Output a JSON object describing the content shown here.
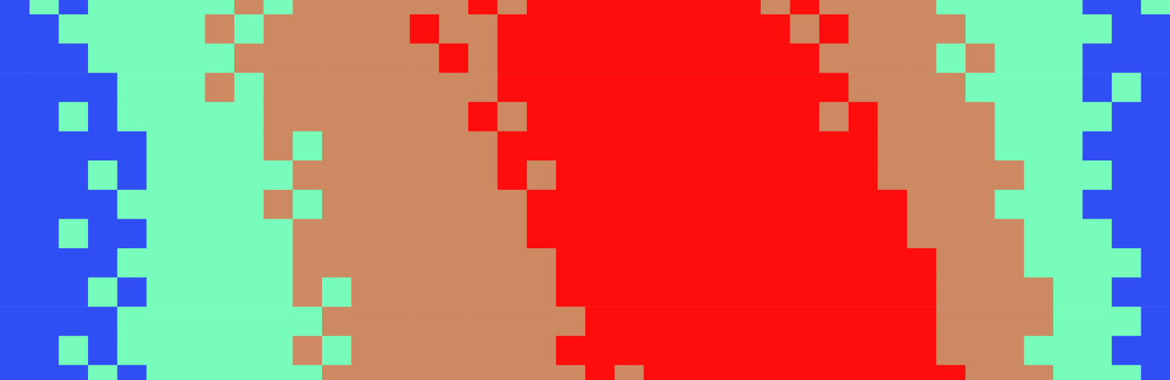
{
  "chart_data": {
    "type": "heatmap",
    "colors": [
      "#2f4ff5",
      "#78fcbc",
      "#cd8a62",
      "#ff0d0d"
    ],
    "grid": false,
    "tick_labels": false,
    "cells": [
      [
        0,
        1,
        0,
        1,
        1,
        1,
        1,
        1,
        2,
        1,
        2,
        2,
        2,
        2,
        2,
        2,
        3,
        2,
        3,
        3,
        3,
        3,
        3,
        3,
        3,
        3,
        2,
        3,
        2,
        2,
        2,
        2,
        1,
        1,
        1,
        1,
        1,
        0,
        0,
        1
      ],
      [
        0,
        0,
        1,
        1,
        1,
        1,
        1,
        2,
        1,
        2,
        2,
        2,
        2,
        2,
        3,
        2,
        2,
        3,
        3,
        3,
        3,
        3,
        3,
        3,
        3,
        3,
        3,
        2,
        3,
        2,
        2,
        2,
        2,
        1,
        1,
        1,
        1,
        1,
        0,
        0
      ],
      [
        0,
        0,
        0,
        1,
        1,
        1,
        1,
        1,
        2,
        2,
        2,
        2,
        2,
        2,
        2,
        3,
        2,
        3,
        3,
        3,
        3,
        3,
        3,
        3,
        3,
        3,
        3,
        3,
        2,
        2,
        2,
        2,
        1,
        2,
        1,
        1,
        1,
        0,
        0,
        0
      ],
      [
        0,
        0,
        0,
        0,
        1,
        1,
        1,
        2,
        1,
        2,
        2,
        2,
        2,
        2,
        2,
        2,
        2,
        3,
        3,
        3,
        3,
        3,
        3,
        3,
        3,
        3,
        3,
        3,
        3,
        2,
        2,
        2,
        2,
        1,
        1,
        1,
        1,
        0,
        1,
        0
      ],
      [
        0,
        0,
        1,
        0,
        1,
        1,
        1,
        1,
        1,
        2,
        2,
        2,
        2,
        2,
        2,
        2,
        3,
        2,
        3,
        3,
        3,
        3,
        3,
        3,
        3,
        3,
        3,
        3,
        2,
        3,
        2,
        2,
        2,
        2,
        1,
        1,
        1,
        1,
        0,
        0
      ],
      [
        0,
        0,
        0,
        0,
        0,
        1,
        1,
        1,
        1,
        2,
        1,
        2,
        2,
        2,
        2,
        2,
        2,
        3,
        3,
        3,
        3,
        3,
        3,
        3,
        3,
        3,
        3,
        3,
        3,
        3,
        2,
        2,
        2,
        2,
        1,
        1,
        1,
        0,
        0,
        0
      ],
      [
        0,
        0,
        0,
        1,
        0,
        1,
        1,
        1,
        1,
        1,
        2,
        2,
        2,
        2,
        2,
        2,
        2,
        3,
        2,
        3,
        3,
        3,
        3,
        3,
        3,
        3,
        3,
        3,
        3,
        3,
        2,
        2,
        2,
        2,
        2,
        1,
        1,
        1,
        0,
        0
      ],
      [
        0,
        0,
        0,
        0,
        1,
        1,
        1,
        1,
        1,
        2,
        1,
        2,
        2,
        2,
        2,
        2,
        2,
        2,
        3,
        3,
        3,
        3,
        3,
        3,
        3,
        3,
        3,
        3,
        3,
        3,
        3,
        2,
        2,
        2,
        1,
        1,
        1,
        0,
        0,
        0
      ],
      [
        0,
        0,
        1,
        0,
        0,
        1,
        1,
        1,
        1,
        1,
        2,
        2,
        2,
        2,
        2,
        2,
        2,
        2,
        3,
        3,
        3,
        3,
        3,
        3,
        3,
        3,
        3,
        3,
        3,
        3,
        3,
        2,
        2,
        2,
        2,
        1,
        1,
        1,
        0,
        0
      ],
      [
        0,
        0,
        0,
        0,
        1,
        1,
        1,
        1,
        1,
        1,
        2,
        2,
        2,
        2,
        2,
        2,
        2,
        2,
        2,
        3,
        3,
        3,
        3,
        3,
        3,
        3,
        3,
        3,
        3,
        3,
        3,
        3,
        2,
        2,
        2,
        1,
        1,
        1,
        1,
        0
      ],
      [
        0,
        0,
        0,
        1,
        0,
        1,
        1,
        1,
        1,
        1,
        2,
        1,
        2,
        2,
        2,
        2,
        2,
        2,
        2,
        3,
        3,
        3,
        3,
        3,
        3,
        3,
        3,
        3,
        3,
        3,
        3,
        3,
        2,
        2,
        2,
        2,
        1,
        1,
        0,
        0
      ],
      [
        0,
        0,
        0,
        0,
        1,
        1,
        1,
        1,
        1,
        1,
        1,
        2,
        2,
        2,
        2,
        2,
        2,
        2,
        2,
        2,
        3,
        3,
        3,
        3,
        3,
        3,
        3,
        3,
        3,
        3,
        3,
        3,
        2,
        2,
        2,
        2,
        1,
        1,
        1,
        0
      ],
      [
        0,
        0,
        1,
        0,
        1,
        1,
        1,
        1,
        1,
        1,
        2,
        1,
        2,
        2,
        2,
        2,
        2,
        2,
        2,
        3,
        3,
        3,
        3,
        3,
        3,
        3,
        3,
        3,
        3,
        3,
        3,
        3,
        2,
        2,
        2,
        1,
        1,
        1,
        0,
        0
      ],
      [
        0,
        0,
        0,
        1,
        0,
        1,
        1,
        1,
        1,
        1,
        1,
        2,
        2,
        2,
        2,
        2,
        2,
        2,
        2,
        2,
        3,
        2,
        3,
        3,
        3,
        3,
        3,
        3,
        3,
        3,
        3,
        3,
        3,
        2,
        2,
        2,
        1,
        1,
        1,
        0
      ]
    ]
  }
}
